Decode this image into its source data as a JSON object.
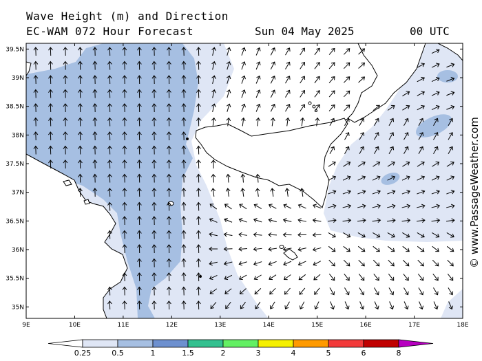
{
  "title_line1": "Wave Height (m) and Direction",
  "title_line2": "EC-WAM 072 Hour Forecast",
  "date_text": "Sun 04 May 2025",
  "time_text": "00 UTC",
  "credit": "© www.PassageWeather.com",
  "map": {
    "lon_labels": [
      "9E",
      "10E",
      "11E",
      "12E",
      "13E",
      "14E",
      "15E",
      "16E",
      "17E",
      "18E"
    ],
    "lat_labels": [
      "39.5N",
      "39N",
      "38.5N",
      "38N",
      "37.5N",
      "37N",
      "36.5N",
      "36N",
      "35.5N",
      "35N"
    ],
    "lon_range": [
      9,
      18
    ],
    "lat_range": [
      34.8,
      39.6
    ],
    "land_color": "#ffffff",
    "coast_color": "#000000"
  },
  "legend": {
    "labels": [
      "0.25",
      "0.5",
      "1",
      "1.5",
      "2",
      "3",
      "4",
      "5",
      "6",
      "8"
    ],
    "colors": [
      "#ffffff",
      "#dfe6f5",
      "#a6bfe2",
      "#6d90cf",
      "#33c08f",
      "#63f063",
      "#f5f000",
      "#ff9a00",
      "#f23a3a",
      "#c00000",
      "#b700c0"
    ]
  }
}
